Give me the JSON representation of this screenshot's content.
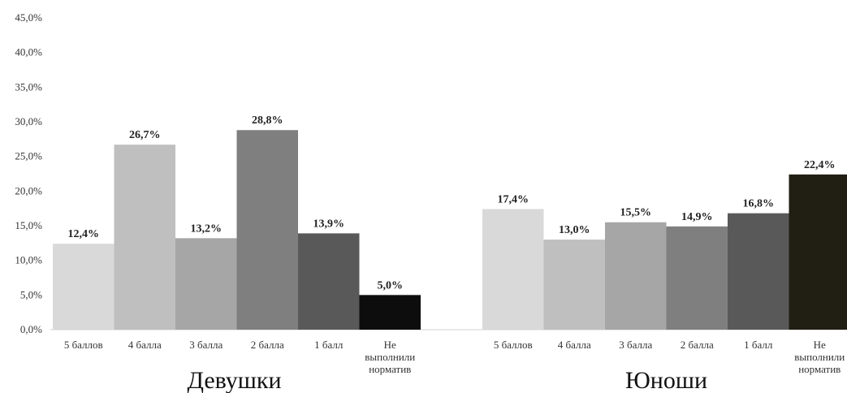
{
  "chart_data": {
    "type": "bar",
    "ylim": [
      0,
      45
    ],
    "yticks": [
      "0,0%",
      "5,0%",
      "10,0%",
      "15,0%",
      "20,0%",
      "25,0%",
      "30,0%",
      "35,0%",
      "40,0%",
      "45,0%"
    ],
    "grid": false,
    "groups": [
      {
        "label": "Девушки",
        "categories": [
          [
            "5 баллов"
          ],
          [
            "4 балла"
          ],
          [
            "3 балла"
          ],
          [
            "2 балла"
          ],
          [
            "1 балл"
          ],
          [
            "Не",
            "выполнили",
            "норматив"
          ]
        ],
        "values": [
          12.4,
          26.7,
          13.2,
          28.8,
          13.9,
          5.0
        ],
        "value_labels": [
          "12,4%",
          "26,7%",
          "13,2%",
          "28,8%",
          "13,9%",
          "5,0%"
        ],
        "colors": [
          "#d9d9d9",
          "#bfbfbf",
          "#a6a6a6",
          "#7f7f7f",
          "#595959",
          "#0d0d0d"
        ]
      },
      {
        "label": "Юноши",
        "categories": [
          [
            "5 баллов"
          ],
          [
            "4 балла"
          ],
          [
            "3 балла"
          ],
          [
            "2 балла"
          ],
          [
            "1 балл"
          ],
          [
            "Не",
            "выполнили",
            "норматив"
          ]
        ],
        "values": [
          17.4,
          13.0,
          15.5,
          14.9,
          16.8,
          22.4
        ],
        "value_labels": [
          "17,4%",
          "13,0%",
          "15,5%",
          "14,9%",
          "16,8%",
          "22,4%"
        ],
        "colors": [
          "#d9d9d9",
          "#bfbfbf",
          "#a6a6a6",
          "#7f7f7f",
          "#595959",
          "#211e14"
        ]
      }
    ]
  }
}
